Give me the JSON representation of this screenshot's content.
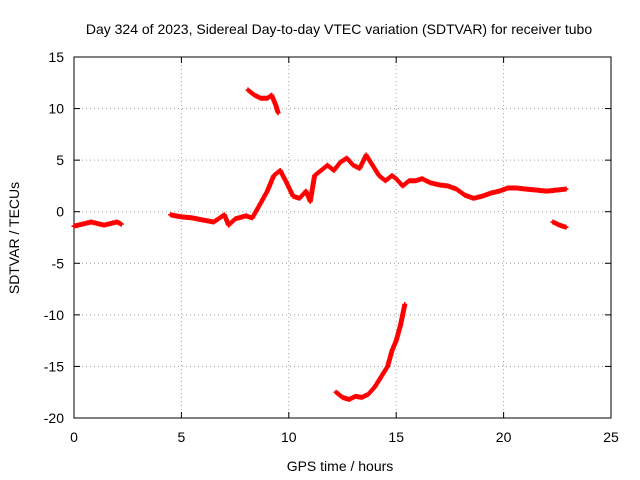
{
  "chart_data": {
    "type": "scatter",
    "title": "Day 324 of 2023, Sidereal Day-to-day VTEC variation (SDTVAR) for receiver tubo",
    "xlabel": "GPS time / hours",
    "ylabel": "SDTVAR / TECUs",
    "xlim": [
      0,
      25
    ],
    "ylim": [
      -20,
      15
    ],
    "xticks": [
      0,
      5,
      10,
      15,
      20,
      25
    ],
    "yticks": [
      -20,
      -15,
      -10,
      -5,
      0,
      5,
      10,
      15
    ],
    "grid": true,
    "marker": "+",
    "color": "#ff0000",
    "series": [
      {
        "name": "segment-1",
        "points": [
          [
            0.0,
            -1.4
          ],
          [
            0.2,
            -1.3
          ],
          [
            0.4,
            -1.2
          ],
          [
            0.6,
            -1.1
          ],
          [
            0.8,
            -1.0
          ],
          [
            1.0,
            -1.1
          ],
          [
            1.2,
            -1.2
          ],
          [
            1.4,
            -1.3
          ],
          [
            1.6,
            -1.2
          ],
          [
            1.8,
            -1.1
          ],
          [
            2.0,
            -1.0
          ],
          [
            2.2,
            -1.2
          ]
        ]
      },
      {
        "name": "segment-2",
        "points": [
          [
            4.5,
            -0.3
          ],
          [
            5.0,
            -0.5
          ],
          [
            5.5,
            -0.6
          ],
          [
            6.0,
            -0.8
          ],
          [
            6.5,
            -1.0
          ],
          [
            7.0,
            -0.3
          ],
          [
            7.2,
            -1.3
          ],
          [
            7.5,
            -0.7
          ],
          [
            8.0,
            -0.4
          ],
          [
            8.3,
            -0.6
          ],
          [
            8.6,
            0.5
          ],
          [
            9.0,
            2.0
          ],
          [
            9.3,
            3.5
          ],
          [
            9.6,
            4.0
          ],
          [
            9.9,
            2.8
          ],
          [
            10.2,
            1.5
          ],
          [
            10.5,
            1.3
          ],
          [
            10.8,
            2.0
          ],
          [
            11.0,
            1.0
          ],
          [
            11.2,
            3.5
          ],
          [
            11.5,
            4.0
          ],
          [
            11.8,
            4.5
          ],
          [
            12.1,
            4.0
          ],
          [
            12.4,
            4.8
          ],
          [
            12.7,
            5.2
          ],
          [
            13.0,
            4.5
          ],
          [
            13.3,
            4.2
          ],
          [
            13.6,
            5.5
          ],
          [
            13.9,
            4.5
          ],
          [
            14.2,
            3.5
          ],
          [
            14.5,
            3.0
          ],
          [
            14.8,
            3.5
          ],
          [
            15.0,
            3.2
          ],
          [
            15.3,
            2.5
          ],
          [
            15.6,
            3.0
          ],
          [
            15.9,
            3.0
          ],
          [
            16.2,
            3.2
          ],
          [
            16.6,
            2.8
          ],
          [
            17.0,
            2.6
          ],
          [
            17.4,
            2.5
          ],
          [
            17.8,
            2.2
          ],
          [
            18.2,
            1.6
          ],
          [
            18.6,
            1.3
          ],
          [
            19.0,
            1.5
          ],
          [
            19.4,
            1.8
          ],
          [
            19.8,
            2.0
          ],
          [
            20.2,
            2.3
          ],
          [
            20.6,
            2.3
          ],
          [
            21.0,
            2.2
          ],
          [
            21.5,
            2.1
          ],
          [
            22.0,
            2.0
          ],
          [
            22.5,
            2.1
          ],
          [
            22.9,
            2.2
          ]
        ]
      },
      {
        "name": "segment-3",
        "points": [
          [
            8.1,
            11.8
          ],
          [
            8.4,
            11.3
          ],
          [
            8.7,
            11.0
          ],
          [
            9.0,
            11.0
          ],
          [
            9.2,
            11.3
          ],
          [
            9.4,
            10.3
          ],
          [
            9.5,
            9.6
          ]
        ]
      },
      {
        "name": "segment-4",
        "points": [
          [
            12.2,
            -17.5
          ],
          [
            12.5,
            -18.0
          ],
          [
            12.8,
            -18.2
          ],
          [
            13.1,
            -17.9
          ],
          [
            13.4,
            -18.0
          ],
          [
            13.7,
            -17.7
          ],
          [
            14.0,
            -17.0
          ],
          [
            14.3,
            -16.0
          ],
          [
            14.6,
            -15.0
          ],
          [
            14.8,
            -13.5
          ],
          [
            15.0,
            -12.5
          ],
          [
            15.2,
            -11.0
          ],
          [
            15.3,
            -10.0
          ],
          [
            15.4,
            -9.0
          ]
        ]
      },
      {
        "name": "segment-5",
        "points": [
          [
            22.3,
            -1.0
          ],
          [
            22.6,
            -1.3
          ],
          [
            22.9,
            -1.5
          ]
        ]
      }
    ]
  }
}
